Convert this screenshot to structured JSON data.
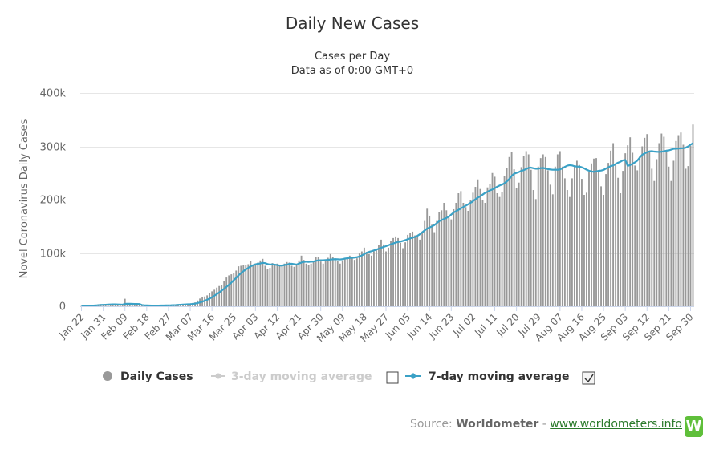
{
  "chart_data": {
    "type": "bar",
    "title": "Daily New Cases",
    "subtitle": [
      "Cases per Day",
      "Data as of 0:00 GMT+0"
    ],
    "ylabel": "Novel Coronavirus Daily Cases",
    "ylim": [
      0,
      400000
    ],
    "yticks": [
      "0",
      "100k",
      "200k",
      "300k",
      "400k"
    ],
    "xtick_labels": [
      "Jan 22",
      "Jan 31",
      "Feb 09",
      "Feb 18",
      "Feb 27",
      "Mar 07",
      "Mar 16",
      "Mar 25",
      "Apr 03",
      "Apr 12",
      "Apr 21",
      "Apr 30",
      "May 09",
      "May 18",
      "May 27",
      "Jun 05",
      "Jun 14",
      "Jun 23",
      "Jul 02",
      "Jul 11",
      "Jul 20",
      "Jul 29",
      "Aug 07",
      "Aug 16",
      "Aug 25",
      "Sep 03",
      "Sep 12",
      "Sep 21",
      "Sep 30"
    ],
    "grid": true,
    "legend_placement": "bottom",
    "colors": {
      "daily": "#999999",
      "ma3": "#cccccc",
      "ma7": "#3aa1c6"
    },
    "series": [
      {
        "name": "Daily Cases",
        "type": "bar",
        "values": [
          600,
          500,
          700,
          2100,
          1800,
          2700,
          3000,
          3800,
          4000,
          3200,
          3800,
          4000,
          3700,
          3200,
          3900,
          2700,
          2100,
          2000,
          14100,
          5100,
          2600,
          2100,
          2000,
          1900,
          1800,
          1200,
          1700,
          700,
          1000,
          500,
          600,
          1100,
          1600,
          1000,
          800,
          800,
          1500,
          1800,
          2400,
          2800,
          3700,
          3600,
          4300,
          4100,
          4500,
          4200,
          6200,
          7300,
          10900,
          14500,
          16500,
          18400,
          20500,
          25000,
          28000,
          31000,
          35000,
          38000,
          40000,
          47000,
          54000,
          58000,
          60000,
          62000,
          67000,
          75000,
          76000,
          78000,
          77000,
          79000,
          85000,
          77000,
          80000,
          82000,
          86000,
          89000,
          76000,
          70000,
          72000,
          81000,
          78000,
          80000,
          78000,
          75000,
          80000,
          83000,
          82000,
          76000,
          74000,
          77000,
          86000,
          95000,
          87000,
          80000,
          77000,
          80000,
          85000,
          92000,
          92000,
          84000,
          80000,
          86000,
          91000,
          98000,
          93000,
          90000,
          85000,
          80000,
          86000,
          90000,
          92000,
          95000,
          93000,
          87000,
          90000,
          99000,
          103000,
          110000,
          102000,
          98000,
          95000,
          103000,
          107000,
          115000,
          125000,
          116000,
          103000,
          110000,
          122000,
          128000,
          131000,
          128000,
          119000,
          109000,
          120000,
          134000,
          138000,
          140000,
          133000,
          131000,
          125000,
          140000,
          160000,
          183000,
          170000,
          153000,
          139000,
          160000,
          176000,
          180000,
          194000,
          180000,
          166000,
          163000,
          182000,
          194000,
          212000,
          216000,
          194000,
          186000,
          179000,
          200000,
          213000,
          224000,
          238000,
          220000,
          199000,
          194000,
          223000,
          229000,
          250000,
          243000,
          212000,
          205000,
          215000,
          245000,
          260000,
          280000,
          289000,
          257000,
          222000,
          232000,
          261000,
          282000,
          291000,
          285000,
          256000,
          218000,
          201000,
          262000,
          278000,
          285000,
          280000,
          255000,
          228000,
          210000,
          262000,
          285000,
          291000,
          262000,
          240000,
          218000,
          205000,
          240000,
          262000,
          273000,
          265000,
          239000,
          209000,
          213000,
          252000,
          268000,
          277000,
          278000,
          255000,
          225000,
          209000,
          248000,
          269000,
          292000,
          306000,
          265000,
          241000,
          212000,
          254000,
          287000,
          302000,
          317000,
          288000,
          264000,
          255000,
          281000,
          300000,
          316000,
          323000,
          289000,
          258000,
          235000,
          276000,
          306000,
          324000,
          318000,
          290000,
          262000,
          235000,
          273000,
          310000,
          321000,
          326000,
          303000,
          258000,
          263000,
          301000,
          341000
        ]
      },
      {
        "name": "3-day moving average",
        "type": "line",
        "visible": false
      },
      {
        "name": "7-day moving average",
        "type": "line",
        "values": [
          600,
          550,
          600,
          975,
          1140,
          1400,
          1643,
          2157,
          2557,
          2743,
          2943,
          3214,
          3486,
          3657,
          3657,
          3500,
          3329,
          3080,
          4500,
          4714,
          4729,
          4557,
          4400,
          4300,
          4243,
          2386,
          1900,
          1700,
          1600,
          1400,
          1300,
          1200,
          1400,
          1500,
          1600,
          1700,
          1800,
          1900,
          2100,
          2300,
          2600,
          2900,
          3200,
          3500,
          3800,
          4000,
          4400,
          5000,
          6000,
          7200,
          8600,
          10400,
          12200,
          14500,
          16900,
          19700,
          22900,
          25900,
          29300,
          32800,
          36400,
          40300,
          44300,
          48900,
          53300,
          58100,
          62200,
          65900,
          69100,
          72000,
          74900,
          77000,
          78700,
          79700,
          80400,
          81500,
          80900,
          79200,
          78200,
          78600,
          78100,
          77300,
          76500,
          76300,
          77600,
          78000,
          79700,
          79700,
          79000,
          78200,
          80200,
          82000,
          83300,
          83600,
          83200,
          83700,
          84000,
          85300,
          86100,
          86300,
          86400,
          86700,
          87000,
          87700,
          88100,
          88300,
          88200,
          87900,
          88300,
          89500,
          90000,
          90700,
          90900,
          91400,
          92100,
          93300,
          95400,
          97900,
          100500,
          102100,
          103300,
          104800,
          106300,
          107900,
          109700,
          111400,
          112800,
          114500,
          116300,
          117800,
          119500,
          120600,
          121300,
          122700,
          124100,
          125800,
          127400,
          128700,
          130100,
          132200,
          135100,
          138800,
          142300,
          145700,
          147700,
          149900,
          152200,
          155900,
          159700,
          161600,
          163700,
          165700,
          168100,
          172100,
          175800,
          178500,
          181000,
          183800,
          186200,
          188600,
          191200,
          194100,
          197100,
          200700,
          203800,
          206400,
          209500,
          212800,
          214800,
          217300,
          219200,
          221600,
          224300,
          226500,
          228200,
          230800,
          234000,
          238900,
          244600,
          248600,
          250300,
          251800,
          254100,
          255400,
          257600,
          259600,
          260100,
          258900,
          258100,
          258000,
          259100,
          259400,
          258500,
          257200,
          256600,
          256100,
          256300,
          256000,
          256800,
          258800,
          261500,
          263800,
          264700,
          264200,
          262800,
          262000,
          262000,
          260800,
          258700,
          256200,
          254300,
          252900,
          252100,
          253100,
          254100,
          254600,
          255800,
          258300,
          260700,
          262900,
          264200,
          266900,
          269400,
          271100,
          273800,
          274400,
          263400,
          265000,
          267300,
          270000,
          273400,
          279100,
          284200,
          286800,
          288900,
          290600,
          291100,
          290200,
          289900,
          289600,
          290000,
          290800,
          291900,
          292500,
          293900,
          295400,
          295700,
          296000,
          296300,
          296500,
          297500,
          299800,
          303000,
          306000
        ]
      }
    ]
  },
  "legend": {
    "items": [
      {
        "label": "Daily Cases",
        "active": true
      },
      {
        "label": "3-day moving average",
        "active": false
      },
      {
        "label": "7-day moving average",
        "active": true
      }
    ]
  },
  "credit": {
    "prefix": "Source: ",
    "source": "Worldometer",
    "separator": " - ",
    "link": "www.worldometers.info",
    "logo_letter": "W"
  }
}
